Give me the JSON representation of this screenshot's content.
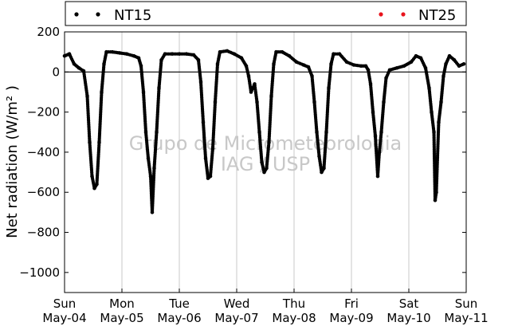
{
  "chart_data": {
    "type": "scatter",
    "ylabel": "Net radiation (W/m² )",
    "ylim": [
      -1100,
      200
    ],
    "yticks": [
      200,
      0,
      -200,
      -400,
      -600,
      -800,
      -1000
    ],
    "xlim": [
      "2014-05-04",
      "2014-05-11"
    ],
    "xticks": [
      {
        "day": "Sun",
        "date": "May-04"
      },
      {
        "day": "Mon",
        "date": "May-05"
      },
      {
        "day": "Tue",
        "date": "May-06"
      },
      {
        "day": "Wed",
        "date": "May-07"
      },
      {
        "day": "Thu",
        "date": "May-08"
      },
      {
        "day": "Fri",
        "date": "May-09"
      },
      {
        "day": "Sat",
        "date": "May-10"
      },
      {
        "day": "Sun",
        "date": "May-11"
      }
    ],
    "grid": "vertical",
    "legend_position": "top",
    "zero_line": true,
    "watermark": [
      "Grupo de Micrometeorologia",
      "IAG / USP"
    ],
    "series": [
      {
        "name": "NT15",
        "color": "#000000",
        "points": [
          [
            "2014-05-04 00:00",
            80
          ],
          [
            "2014-05-04 02:00",
            90
          ],
          [
            "2014-05-04 04:00",
            40
          ],
          [
            "2014-05-04 06:00",
            20
          ],
          [
            "2014-05-04 08:00",
            5
          ],
          [
            "2014-05-04 09:30",
            -120
          ],
          [
            "2014-05-04 10:30",
            -350
          ],
          [
            "2014-05-04 11:30",
            -520
          ],
          [
            "2014-05-04 12:30",
            -580
          ],
          [
            "2014-05-04 13:30",
            -560
          ],
          [
            "2014-05-04 14:30",
            -350
          ],
          [
            "2014-05-04 15:30",
            -100
          ],
          [
            "2014-05-04 16:30",
            40
          ],
          [
            "2014-05-04 17:30",
            100
          ],
          [
            "2014-05-04 20:00",
            100
          ],
          [
            "2014-05-04 23:00",
            95
          ],
          [
            "2014-05-05 02:00",
            90
          ],
          [
            "2014-05-05 05:00",
            80
          ],
          [
            "2014-05-05 07:00",
            70
          ],
          [
            "2014-05-05 08:00",
            30
          ],
          [
            "2014-05-05 09:00",
            -100
          ],
          [
            "2014-05-05 10:00",
            -300
          ],
          [
            "2014-05-05 11:00",
            -430
          ],
          [
            "2014-05-05 12:00",
            -520
          ],
          [
            "2014-05-05 12:40",
            -700
          ],
          [
            "2014-05-05 13:30",
            -480
          ],
          [
            "2014-05-05 14:30",
            -300
          ],
          [
            "2014-05-05 15:30",
            -80
          ],
          [
            "2014-05-05 16:30",
            60
          ],
          [
            "2014-05-05 18:00",
            90
          ],
          [
            "2014-05-05 21:00",
            90
          ],
          [
            "2014-05-06 00:00",
            90
          ],
          [
            "2014-05-06 03:00",
            90
          ],
          [
            "2014-05-06 06:00",
            85
          ],
          [
            "2014-05-06 08:00",
            60
          ],
          [
            "2014-05-06 09:00",
            -50
          ],
          [
            "2014-05-06 10:00",
            -250
          ],
          [
            "2014-05-06 11:00",
            -430
          ],
          [
            "2014-05-06 12:00",
            -530
          ],
          [
            "2014-05-06 13:00",
            -520
          ],
          [
            "2014-05-06 14:00",
            -380
          ],
          [
            "2014-05-06 15:00",
            -150
          ],
          [
            "2014-05-06 16:00",
            40
          ],
          [
            "2014-05-06 17:00",
            100
          ],
          [
            "2014-05-06 20:00",
            105
          ],
          [
            "2014-05-06 23:00",
            90
          ],
          [
            "2014-05-07 02:00",
            70
          ],
          [
            "2014-05-07 04:00",
            30
          ],
          [
            "2014-05-07 05:00",
            -20
          ],
          [
            "2014-05-07 06:00",
            -100
          ],
          [
            "2014-05-07 07:30",
            -60
          ],
          [
            "2014-05-07 08:30",
            -150
          ],
          [
            "2014-05-07 09:30",
            -300
          ],
          [
            "2014-05-07 10:30",
            -450
          ],
          [
            "2014-05-07 11:30",
            -500
          ],
          [
            "2014-05-07 12:30",
            -480
          ],
          [
            "2014-05-07 13:30",
            -350
          ],
          [
            "2014-05-07 14:30",
            -120
          ],
          [
            "2014-05-07 15:30",
            40
          ],
          [
            "2014-05-07 16:30",
            100
          ],
          [
            "2014-05-07 19:00",
            100
          ],
          [
            "2014-05-07 22:00",
            80
          ],
          [
            "2014-05-08 01:00",
            50
          ],
          [
            "2014-05-08 04:00",
            35
          ],
          [
            "2014-05-08 06:00",
            25
          ],
          [
            "2014-05-08 07:30",
            -20
          ],
          [
            "2014-05-08 08:30",
            -150
          ],
          [
            "2014-05-08 09:30",
            -300
          ],
          [
            "2014-05-08 10:30",
            -420
          ],
          [
            "2014-05-08 11:30",
            -500
          ],
          [
            "2014-05-08 12:30",
            -480
          ],
          [
            "2014-05-08 13:30",
            -300
          ],
          [
            "2014-05-08 14:30",
            -80
          ],
          [
            "2014-05-08 15:30",
            40
          ],
          [
            "2014-05-08 16:30",
            90
          ],
          [
            "2014-05-08 19:00",
            90
          ],
          [
            "2014-05-08 22:00",
            50
          ],
          [
            "2014-05-09 01:00",
            35
          ],
          [
            "2014-05-09 04:00",
            30
          ],
          [
            "2014-05-09 06:00",
            30
          ],
          [
            "2014-05-09 07:00",
            10
          ],
          [
            "2014-05-09 08:00",
            -60
          ],
          [
            "2014-05-09 09:00",
            -200
          ],
          [
            "2014-05-09 10:00",
            -320
          ],
          [
            "2014-05-09 11:00",
            -520
          ],
          [
            "2014-05-09 11:40",
            -400
          ],
          [
            "2014-05-09 12:30",
            -300
          ],
          [
            "2014-05-09 13:30",
            -150
          ],
          [
            "2014-05-09 14:30",
            -30
          ],
          [
            "2014-05-09 16:00",
            10
          ],
          [
            "2014-05-09 19:00",
            20
          ],
          [
            "2014-05-09 22:00",
            30
          ],
          [
            "2014-05-10 01:00",
            50
          ],
          [
            "2014-05-10 03:00",
            80
          ],
          [
            "2014-05-10 05:00",
            70
          ],
          [
            "2014-05-10 07:00",
            20
          ],
          [
            "2014-05-10 08:30",
            -80
          ],
          [
            "2014-05-10 09:30",
            -200
          ],
          [
            "2014-05-10 10:30",
            -300
          ],
          [
            "2014-05-10 11:00",
            -640
          ],
          [
            "2014-05-10 11:30",
            -600
          ],
          [
            "2014-05-10 12:30",
            -250
          ],
          [
            "2014-05-10 13:30",
            -150
          ],
          [
            "2014-05-10 14:30",
            -20
          ],
          [
            "2014-05-10 15:30",
            40
          ],
          [
            "2014-05-10 17:00",
            80
          ],
          [
            "2014-05-10 19:00",
            60
          ],
          [
            "2014-05-10 21:00",
            30
          ],
          [
            "2014-05-10 23:00",
            40
          ]
        ]
      },
      {
        "name": "NT25",
        "color": "#e8141c",
        "points": []
      }
    ]
  }
}
